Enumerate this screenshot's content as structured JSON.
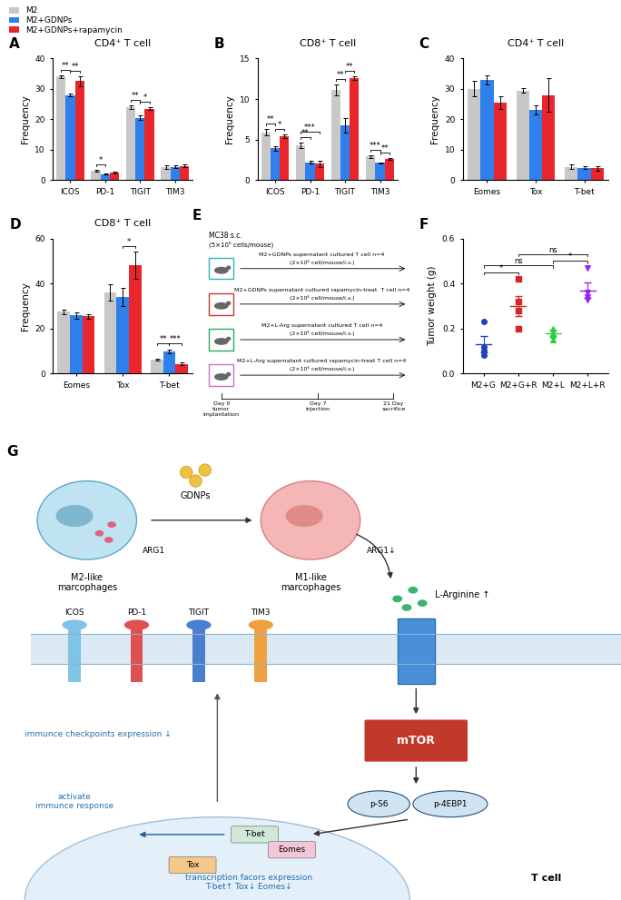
{
  "chart_data": [
    {
      "panel": "A",
      "type": "bar",
      "title": "CD4⁺ T cell",
      "y_label": "Frequency",
      "categories": [
        "ICOS",
        "PD-1",
        "TIGIT",
        "TIM3"
      ],
      "series": [
        {
          "name": "M2",
          "color": "#c8c8c8",
          "values": [
            34,
            3,
            24,
            4.2
          ],
          "errors": [
            0.5,
            0.3,
            0.6,
            0.5
          ]
        },
        {
          "name": "M2+GDNPs",
          "color": "#2f80ed",
          "values": [
            28,
            2,
            20.5,
            4.3
          ],
          "errors": [
            0.5,
            0.2,
            0.8,
            0.4
          ]
        },
        {
          "name": "M2+GDNPs+rapamycin",
          "color": "#e8262b",
          "values": [
            32.5,
            2.4,
            23.5,
            4.6
          ],
          "errors": [
            1.5,
            0.3,
            0.5,
            0.4
          ]
        }
      ],
      "ylim": [
        0,
        40
      ],
      "yticks": [
        0,
        10,
        20,
        30,
        40
      ],
      "legend": "upper left",
      "significance": [
        {
          "category": "ICOS",
          "pair": [
            "M2",
            "M2+GDNPs"
          ],
          "text": "**"
        },
        {
          "category": "ICOS",
          "pair": [
            "M2+GDNPs",
            "M2+GDNPs+rapamycin"
          ],
          "text": "**"
        },
        {
          "category": "PD-1",
          "pair": [
            "M2",
            "M2+GDNPs"
          ],
          "text": "*"
        },
        {
          "category": "TIGIT",
          "pair": [
            "M2",
            "M2+GDNPs"
          ],
          "text": "**"
        },
        {
          "category": "TIGIT",
          "pair": [
            "M2+GDNPs",
            "M2+GDNPs+rapamycin"
          ],
          "text": "*"
        }
      ]
    },
    {
      "panel": "B",
      "type": "bar",
      "title": "CD8⁺ T cell",
      "y_label": "Frequency",
      "categories": [
        "ICOS",
        "PD-1",
        "TIGIT",
        "TIM3"
      ],
      "series": [
        {
          "name": "M2",
          "color": "#c8c8c8",
          "values": [
            5.9,
            4.3,
            11.1,
            2.9
          ],
          "errors": [
            0.4,
            0.3,
            0.7,
            0.15
          ]
        },
        {
          "name": "M2+GDNPs",
          "color": "#2f80ed",
          "values": [
            3.9,
            2.2,
            6.8,
            2.1
          ],
          "errors": [
            0.3,
            0.2,
            0.9,
            0.1
          ]
        },
        {
          "name": "M2+GDNPs+rapamycin",
          "color": "#e8262b",
          "values": [
            5.4,
            2.0,
            12.6,
            2.6
          ],
          "errors": [
            0.2,
            0.4,
            0.2,
            0.1
          ]
        }
      ],
      "ylim": [
        0,
        15
      ],
      "yticks": [
        0,
        5,
        10,
        15
      ],
      "significance": [
        {
          "category": "ICOS",
          "pair": [
            "M2",
            "M2+GDNPs"
          ],
          "text": "**"
        },
        {
          "category": "ICOS",
          "pair": [
            "M2+GDNPs",
            "M2+GDNPs+rapamycin"
          ],
          "text": "*"
        },
        {
          "category": "PD-1",
          "pair": [
            "M2",
            "M2+GDNPs"
          ],
          "text": "**"
        },
        {
          "category": "PD-1",
          "pair": [
            "M2",
            "M2+GDNPs+rapamycin"
          ],
          "text": "***"
        },
        {
          "category": "TIGIT",
          "pair": [
            "M2",
            "M2+GDNPs"
          ],
          "text": "**"
        },
        {
          "category": "TIGIT",
          "pair": [
            "M2+GDNPs",
            "M2+GDNPs+rapamycin"
          ],
          "text": "**"
        },
        {
          "category": "TIM3",
          "pair": [
            "M2",
            "M2+GDNPs"
          ],
          "text": "***"
        },
        {
          "category": "TIM3",
          "pair": [
            "M2+GDNPs",
            "M2+GDNPs+rapamycin"
          ],
          "text": "**"
        }
      ]
    },
    {
      "panel": "C",
      "type": "bar",
      "title": "CD4⁺ T cell",
      "y_label": "Frequency",
      "categories": [
        "Eomes",
        "Tox",
        "T-bet"
      ],
      "series": [
        {
          "name": "M2",
          "color": "#c8c8c8",
          "values": [
            30,
            29.5,
            4.3
          ],
          "errors": [
            2.5,
            0.8,
            0.8
          ]
        },
        {
          "name": "M2+GDNPs",
          "color": "#2f80ed",
          "values": [
            33,
            23,
            4
          ],
          "errors": [
            1.5,
            1.5,
            0.5
          ]
        },
        {
          "name": "M2+GDNPs+rapamycin",
          "color": "#e8262b",
          "values": [
            25.5,
            28,
            3.8
          ],
          "errors": [
            2,
            5.5,
            0.8
          ]
        }
      ],
      "ylim": [
        0,
        40
      ],
      "yticks": [
        0,
        10,
        20,
        30,
        40
      ],
      "significance": []
    },
    {
      "panel": "D",
      "type": "bar",
      "title": "CD8⁺ T cell",
      "y_label": "Frequency",
      "categories": [
        "Eomes",
        "Tox",
        "T-bet"
      ],
      "series": [
        {
          "name": "M2",
          "color": "#c8c8c8",
          "values": [
            27.5,
            36,
            6.3
          ],
          "errors": [
            1,
            3.5,
            0.4
          ]
        },
        {
          "name": "M2+GDNPs",
          "color": "#2f80ed",
          "values": [
            25.8,
            34,
            9.8
          ],
          "errors": [
            1.5,
            4,
            0.8
          ]
        },
        {
          "name": "M2+GDNPs+rapamycin",
          "color": "#e8262b",
          "values": [
            25.5,
            48,
            4.3
          ],
          "errors": [
            1,
            6,
            0.6
          ]
        }
      ],
      "ylim": [
        0,
        60
      ],
      "yticks": [
        0,
        20,
        40,
        60
      ],
      "significance": [
        {
          "category": "Tox",
          "pair": [
            "M2+GDNPs",
            "M2+GDNPs+rapamycin"
          ],
          "text": "*"
        },
        {
          "category": "T-bet",
          "pair": [
            "M2",
            "M2+GDNPs"
          ],
          "text": "**"
        },
        {
          "category": "T-bet",
          "pair": [
            "M2+GDNPs",
            "M2+GDNPs+rapamycin"
          ],
          "text": "***"
        }
      ]
    },
    {
      "panel": "F",
      "type": "scatter",
      "y_label": "Tumor weight (g)",
      "categories": [
        "M2+G",
        "M2+G+R",
        "M2+L",
        "M2+L+R"
      ],
      "groups": [
        {
          "color": "#1f3fbf",
          "marker": "circle",
          "values": [
            0.23,
            0.12,
            0.1,
            0.08
          ],
          "mean": 0.13,
          "error": 0.035
        },
        {
          "color": "#d62728",
          "marker": "square",
          "values": [
            0.42,
            0.32,
            0.28,
            0.2
          ],
          "mean": 0.3,
          "error": 0.045
        },
        {
          "color": "#2ecc40",
          "marker": "triangle",
          "values": [
            0.2,
            0.18,
            0.17,
            0.15
          ],
          "mean": 0.18,
          "error": 0.015
        },
        {
          "color": "#a020f0",
          "marker": "triangle_down",
          "values": [
            0.47,
            0.36,
            0.34,
            0.33
          ],
          "mean": 0.37,
          "error": 0.035
        }
      ],
      "ylim": [
        0,
        0.6
      ],
      "yticks": [
        {
          "value": 0,
          "label": "0.0"
        },
        0.2,
        0.4,
        0.6
      ],
      "significance": [
        {
          "pair": [
            "M2+G",
            "M2+G+R"
          ],
          "text": "*"
        },
        {
          "pair": [
            "M2+G",
            "M2+L"
          ],
          "text": "ns"
        },
        {
          "pair": [
            "M2+L",
            "M2+L+R"
          ],
          "text": "*"
        },
        {
          "pair": [
            "M2+G+R",
            "M2+L+R"
          ],
          "text": "ns"
        }
      ]
    }
  ],
  "diagrams": {
    "E": {
      "panel": "E",
      "header": "MC38 s.c.",
      "subheader": "(5×10⁵ cells/mouse)",
      "rows": [
        {
          "text": "M2+GDNPs supernatant cultured T cell n=4",
          "dose": "(2×10⁶ cell/mouse/i.v.)"
        },
        {
          "text": "M2+GDNPs supernatant cultured rapamycin-treat  T cell n=4",
          "dose": "(2×10⁶ cell/mouse/i.v.)"
        },
        {
          "text": "M2+L-Arg supernatant cultured T cell n=4",
          "dose": "(2×10⁶ cell/mouse/i.v.)"
        },
        {
          "text": "M2+L-Arg supernatant cultured rapamycin-treat T cell n=4",
          "dose": "(2×10⁶ cell/mouse/i.v.)"
        }
      ],
      "timeline": [
        "Day 0\ntumor\nimplantation",
        "Day 7\ninjection",
        "21 Day\nsacrifice"
      ]
    },
    "G": {
      "panel": "G",
      "gdnps": "GDNPs",
      "m2": "M2-like\nmarcophages",
      "arg1": "ARG1",
      "m1": "M1-like\nmarcophages",
      "arg1_down": "ARG1↓",
      "l_arg": "L-Arginine ↑",
      "receptors": [
        "ICOS",
        "PD-1",
        "TIGIT",
        "TIM3"
      ],
      "checkpoints": "immunce checkpoints expression ↓",
      "mtor": "mTOR",
      "p_s6": "p-S6",
      "p_4ebp1": "p-4EBP1",
      "activate": "activate\nimmunce response",
      "tfs": [
        "T-bet",
        "Eomes",
        "Tox"
      ],
      "tf_expression": "transcription facors expression\nT-bet↑ Tox↓ Eomes↓",
      "cell": "T cell"
    }
  }
}
